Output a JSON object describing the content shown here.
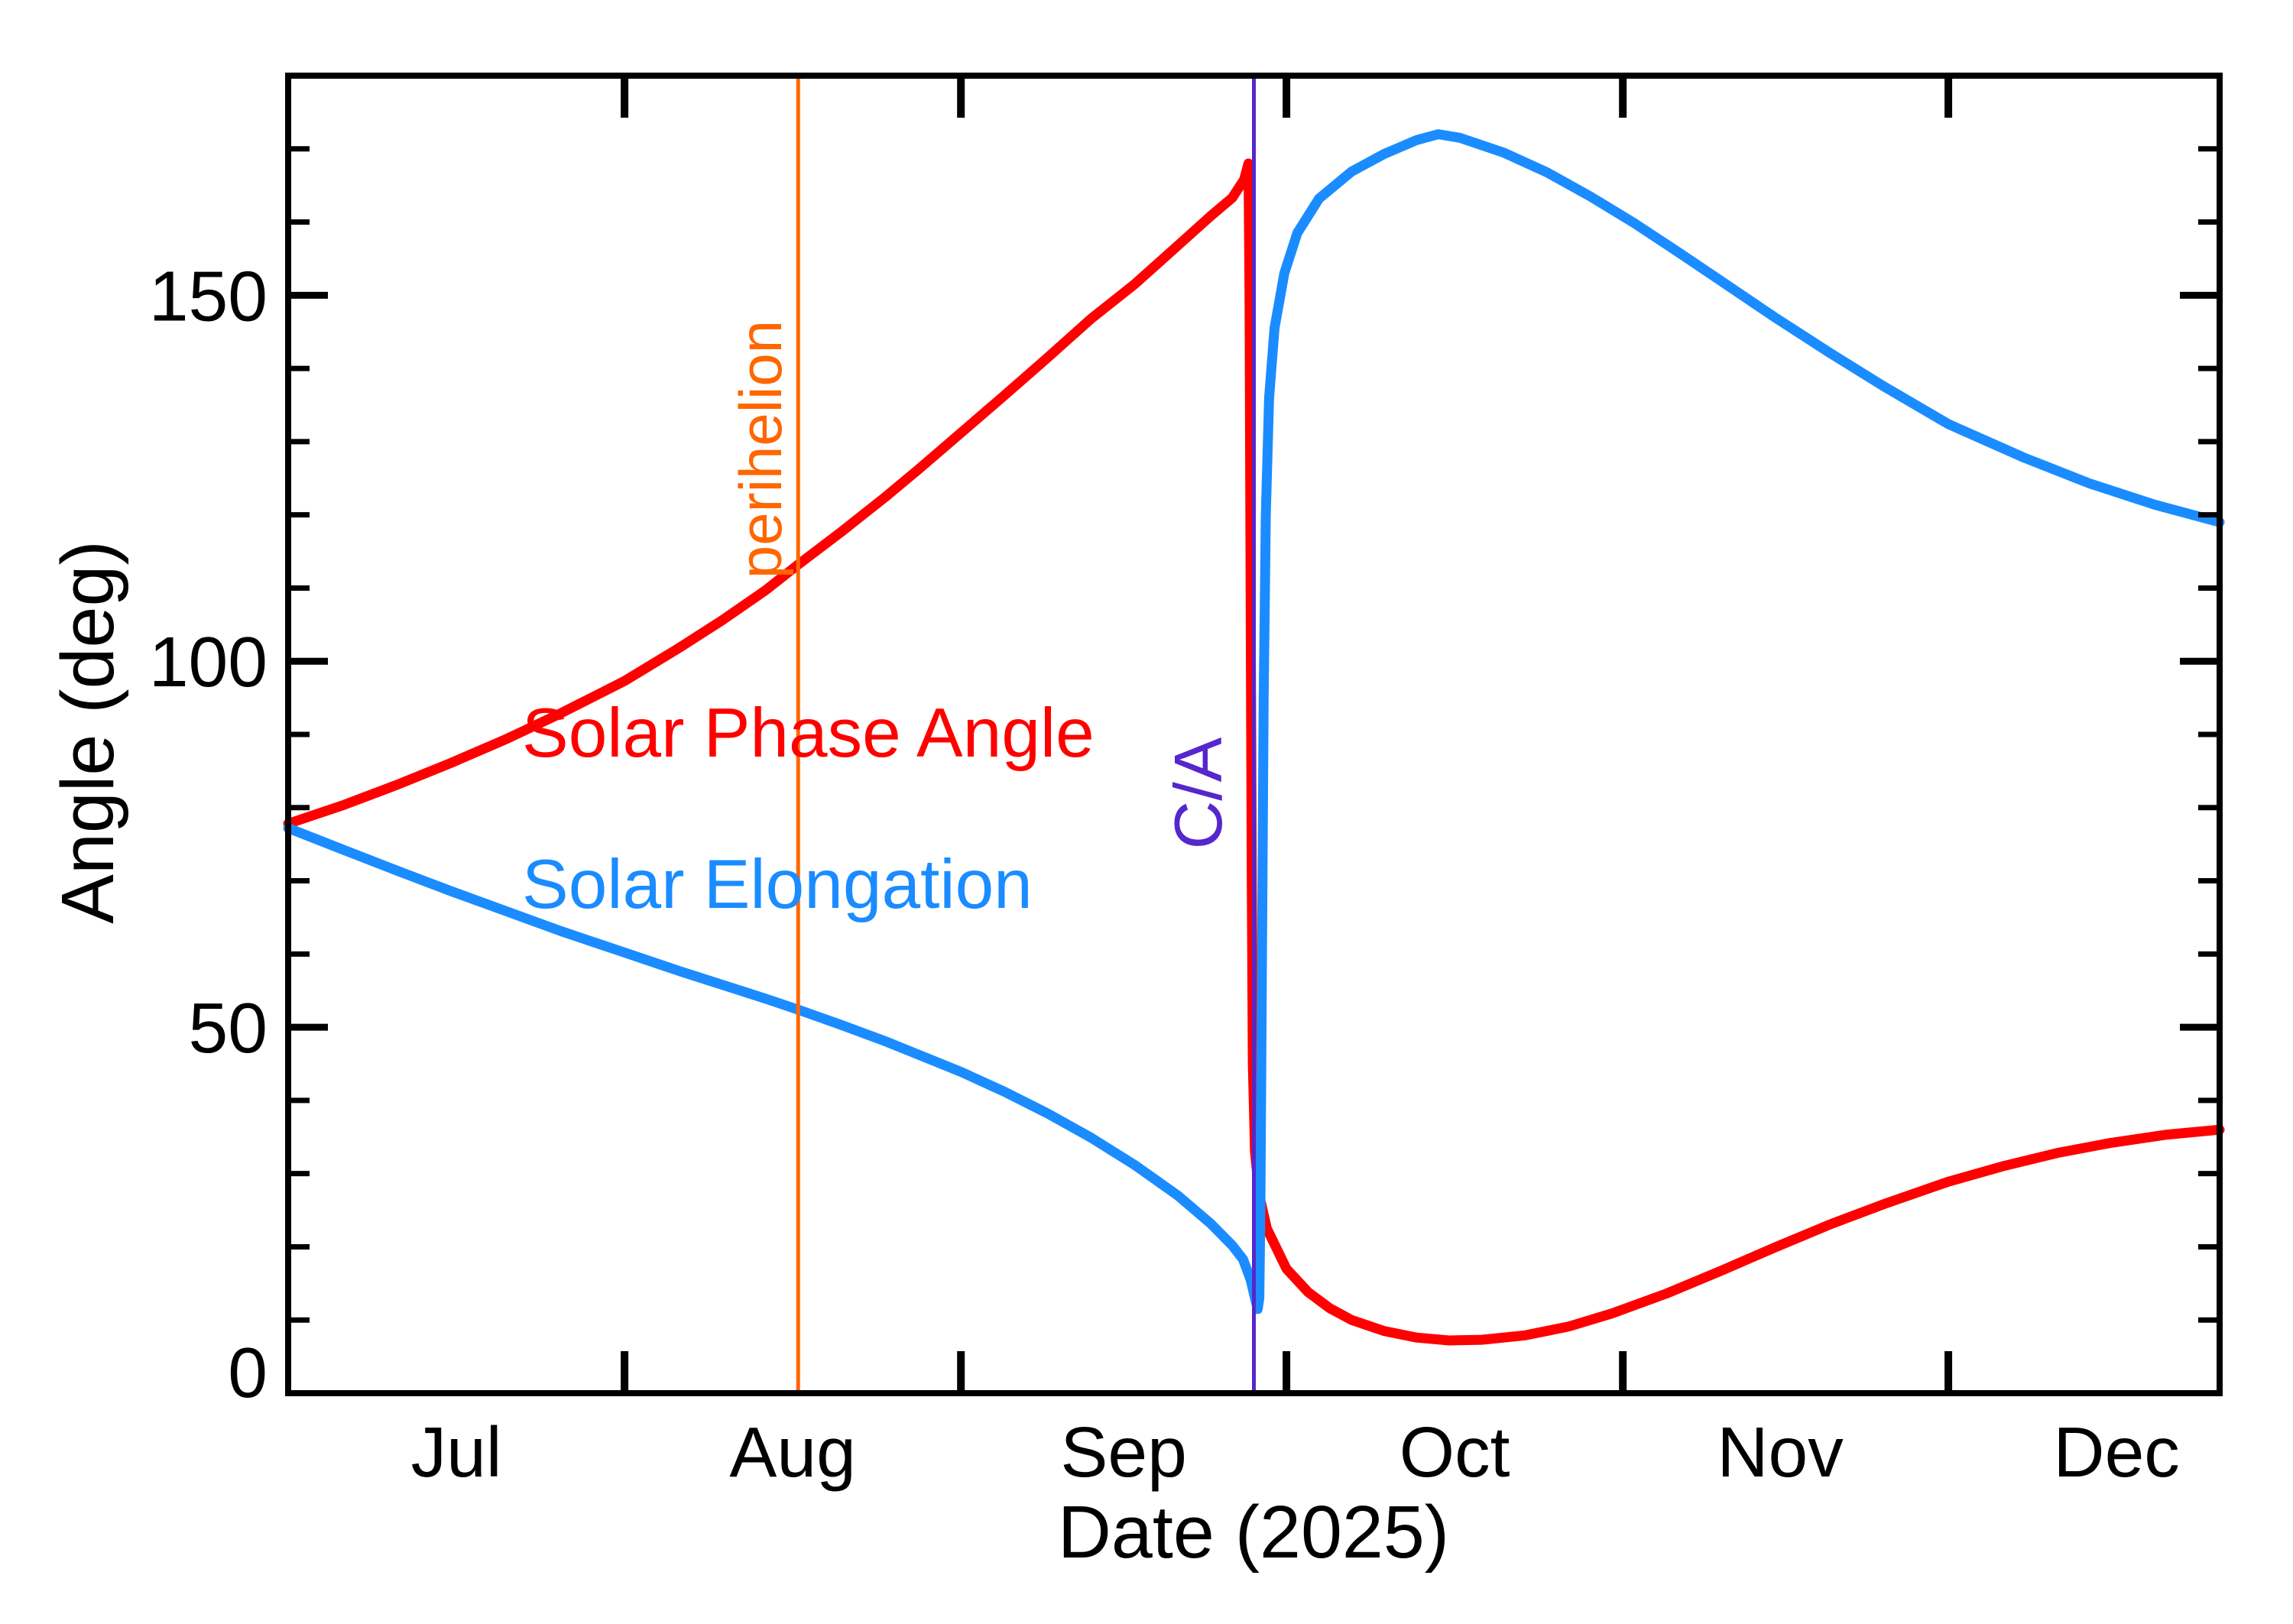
{
  "colors": {
    "background": "#ffffff",
    "frame": "#000000",
    "phase": "#ff0000",
    "elongation": "#1b8cff",
    "perihelion_line": "#ff6600",
    "close_approach_line": "#5527cc"
  },
  "axes": {
    "y": {
      "label": "Angle (deg)",
      "major_ticks": [
        0,
        50,
        100,
        150
      ],
      "minor_tick_step": 10,
      "range": [
        0,
        180
      ]
    },
    "x": {
      "label": "Date (2025)",
      "range_days": [
        0,
        178
      ],
      "months": [
        {
          "label": "Jul",
          "mid_day": 15.5,
          "tick_day": null
        },
        {
          "label": "Aug",
          "mid_day": 46.5,
          "tick_day": 31
        },
        {
          "label": "Sep",
          "mid_day": 77,
          "tick_day": 62
        },
        {
          "label": "Oct",
          "mid_day": 107.5,
          "tick_day": 92
        },
        {
          "label": "Nov",
          "mid_day": 137.5,
          "tick_day": 123
        },
        {
          "label": "Dec",
          "mid_day": 168.5,
          "tick_day": 153
        }
      ]
    }
  },
  "series_labels": {
    "phase": "Solar Phase Angle",
    "elongation": "Solar Elongation"
  },
  "annotations": {
    "perihelion": {
      "label": "perihelion",
      "day": 47
    },
    "close_approach": {
      "label": "C/A",
      "day": 89
    }
  },
  "chart_data": {
    "type": "line",
    "title": "",
    "xlabel": "Date (2025)",
    "ylabel": "Angle (deg)",
    "ylim": [
      0,
      180
    ],
    "x_unit": "days since Jul 1 (left edge of axis)",
    "x_month_starts": {
      "Aug": 31,
      "Sep": 62,
      "Oct": 92,
      "Nov": 123,
      "Dec": 153
    },
    "grid": false,
    "legend_position": "labels drawn on plot",
    "vlines": [
      {
        "label": "perihelion",
        "day": 47,
        "color": "#ff6600"
      },
      {
        "label": "C/A",
        "day": 89,
        "color": "#5527cc"
      }
    ],
    "series": [
      {
        "name": "Solar Phase Angle",
        "color": "#ff0000",
        "points": [
          [
            0,
            77.8
          ],
          [
            5,
            80.3
          ],
          [
            10,
            83.1
          ],
          [
            15,
            86.1
          ],
          [
            20,
            89.3
          ],
          [
            25,
            92.8
          ],
          [
            31,
            97.3
          ],
          [
            36,
            101.8
          ],
          [
            40,
            105.6
          ],
          [
            44,
            109.7
          ],
          [
            47,
            113.2
          ],
          [
            51,
            117.7
          ],
          [
            55,
            122.4
          ],
          [
            58,
            126.1
          ],
          [
            62,
            131.2
          ],
          [
            66,
            136.3
          ],
          [
            70,
            141.5
          ],
          [
            74,
            146.8
          ],
          [
            78,
            151.5
          ],
          [
            82,
            156.8
          ],
          [
            85,
            160.8
          ],
          [
            87,
            163.3
          ],
          [
            88.1,
            165.8
          ],
          [
            88.5,
            168
          ],
          [
            88.6,
            150
          ],
          [
            88.7,
            110
          ],
          [
            88.8,
            70
          ],
          [
            88.9,
            45
          ],
          [
            89.1,
            33
          ],
          [
            89.5,
            27
          ],
          [
            90.2,
            22.5
          ],
          [
            92,
            17
          ],
          [
            94,
            13.8
          ],
          [
            96,
            11.6
          ],
          [
            98,
            10
          ],
          [
            101,
            8.5
          ],
          [
            104,
            7.6
          ],
          [
            107,
            7.2
          ],
          [
            110,
            7.3
          ],
          [
            114,
            7.9
          ],
          [
            118,
            9.1
          ],
          [
            122,
            10.9
          ],
          [
            127,
            13.6
          ],
          [
            132,
            16.7
          ],
          [
            137,
            19.9
          ],
          [
            142,
            23
          ],
          [
            147,
            25.8
          ],
          [
            153,
            28.9
          ],
          [
            158,
            31
          ],
          [
            163,
            32.8
          ],
          [
            168,
            34.2
          ],
          [
            173,
            35.3
          ],
          [
            178,
            36
          ]
        ]
      },
      {
        "name": "Solar Elongation",
        "color": "#1b8cff",
        "points": [
          [
            0,
            77.2
          ],
          [
            5,
            74.3
          ],
          [
            10,
            71.4
          ],
          [
            15,
            68.6
          ],
          [
            20,
            65.9
          ],
          [
            25,
            63.2
          ],
          [
            31,
            60.2
          ],
          [
            36,
            57.7
          ],
          [
            40,
            55.8
          ],
          [
            44,
            53.9
          ],
          [
            47,
            52.4
          ],
          [
            51,
            50.3
          ],
          [
            55,
            48.1
          ],
          [
            58,
            46.3
          ],
          [
            62,
            43.9
          ],
          [
            66,
            41.2
          ],
          [
            70,
            38.2
          ],
          [
            74,
            34.9
          ],
          [
            78,
            31.2
          ],
          [
            82,
            27
          ],
          [
            85,
            23.2
          ],
          [
            87,
            20.2
          ],
          [
            88,
            18.3
          ],
          [
            88.7,
            15.5
          ],
          [
            89.1,
            13
          ],
          [
            89.35,
            11.5
          ],
          [
            89.5,
            13
          ],
          [
            89.6,
            25
          ],
          [
            89.75,
            60
          ],
          [
            89.9,
            95
          ],
          [
            90.1,
            120
          ],
          [
            90.4,
            136
          ],
          [
            90.9,
            145.5
          ],
          [
            91.8,
            153
          ],
          [
            93,
            158.5
          ],
          [
            95,
            163.2
          ],
          [
            98,
            166.9
          ],
          [
            101,
            169.3
          ],
          [
            104,
            171.2
          ],
          [
            106,
            172
          ],
          [
            108,
            171.5
          ],
          [
            112,
            169.5
          ],
          [
            116,
            166.8
          ],
          [
            120,
            163.5
          ],
          [
            124,
            159.9
          ],
          [
            128,
            156
          ],
          [
            132,
            152
          ],
          [
            137,
            147
          ],
          [
            142,
            142.2
          ],
          [
            147,
            137.6
          ],
          [
            153,
            132.4
          ],
          [
            160,
            127.8
          ],
          [
            166,
            124.3
          ],
          [
            172,
            121.4
          ],
          [
            178,
            119
          ]
        ]
      }
    ]
  }
}
